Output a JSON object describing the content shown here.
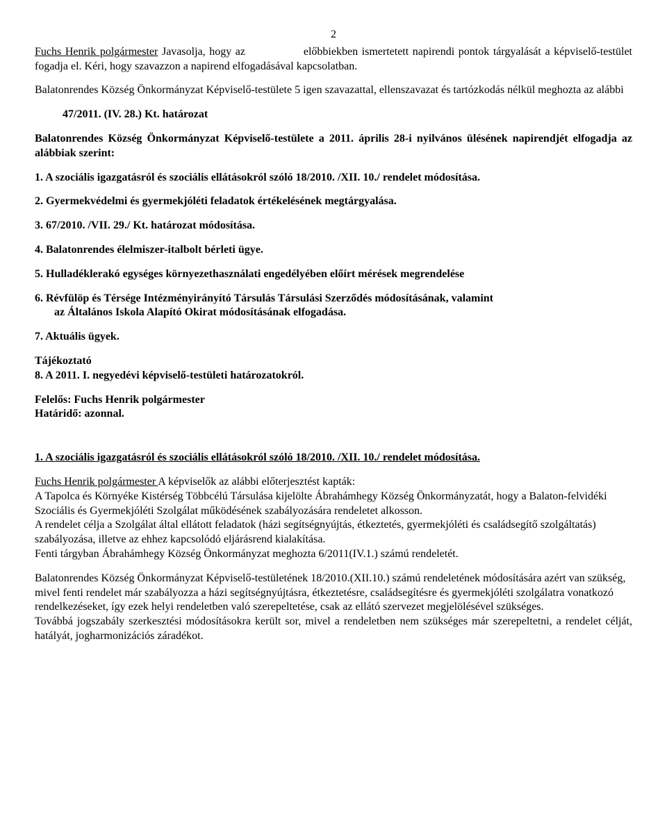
{
  "page_number": "2",
  "intro": {
    "p1_name": "Fuchs Henrik polgármester",
    "p1_rest": " Javasolja, hogy az               előbbiekben ismertetett napirendi pontok tárgyalását a képviselő-testület fogadja el. Kéri, hogy szavazzon  a napirend elfogadásával kapcsolatban.",
    "p2": "Balatonrendes  Község Önkormányzat  Képviselő-testülete  5 igen szavazattal, ellenszavazat és tartózkodás nélkül meghozta az alábbi",
    "res_no": "47/2011. (IV. 28.) Kt.  határozat",
    "p3": "Balatonrendes  Község Önkormányzat Képviselő-testülete a 2011. április 28-i  nyilvános ülésének napirendjét elfogadja az alábbiak szerint:"
  },
  "items": {
    "i1": "1.    A szociális igazgatásról és szociális ellátásokról szóló 18/2010. /XII. 10./ rendelet módosítása.",
    "i2": "2.   Gyermekvédelmi és gyermekjóléti feladatok értékelésének megtárgyalása.",
    "i3": "3.    67/2010. /VII. 29./ Kt. határozat módosítása.",
    "i4": "4.    Balatonrendes élelmiszer-italbolt bérleti ügye.",
    "i5": "5.   Hulladéklerakó egységes környezethasználati engedélyében előírt mérések megrendelése",
    "i6a": "6.   Révfülöp és Térsége Intézményirányító Társulás Társulási Szerződés módosításának, valamint",
    "i6b": "az Általános Iskola  Alapító Okirat módosításának elfogadása.",
    "i7": "7.   Aktuális ügyek.",
    "taj": "Tájékoztató",
    "i8": "8.   A 2011. I. negyedévi képviselő-testületi határozatokról.",
    "fel": "Felelős: Fuchs Henrik polgármester",
    "hat": "Határidő: azonnal."
  },
  "section1": {
    "heading": "1.    A szociális igazgatásról és szociális ellátásokról szóló 18/2010. /XII. 10./ rendelet módosítása.",
    "p1_name": "Fuchs Henrik polgármester ",
    "p1_rest": "  A képviselők az alábbi előterjesztést kapták:",
    "p2": "A Tapolca és Környéke Kistérség Többcélú Társulása kijelölte Ábrahámhegy Község Önkormányzatát, hogy a Balaton-felvidéki Szociális és Gyermekjóléti Szolgálat működésének szabályozására rendeletet alkosson.",
    "p3": "A rendelet célja a Szolgálat által ellátott feladatok (házi segítségnyújtás, étkeztetés, gyermekjóléti és családsegítő szolgáltatás) szabályozása, illetve az ehhez kapcsolódó eljárásrend kialakítása.",
    "p4": "Fenti tárgyban Ábrahámhegy Község Önkormányzat meghozta 6/2011(IV.1.) számú rendeletét.",
    "p5": "Balatonrendes Község Önkormányzat Képviselő-testületének 18/2010.(XII.10.) számú rendeletének módosítására azért van szükség, mivel fenti rendelet már szabályozza a házi segítségnyújtásra, étkeztetésre, családsegítésre és gyermekjóléti szolgálatra vonatkozó rendelkezéseket, így ezek helyi rendeletben való szerepeltetése, csak  az ellátó szervezet megjelölésével szükséges.",
    "p6": "Továbbá jogszabály szerkesztési módosításokra került sor, mivel a rendeletben nem szükséges már szerepeltetni, a rendelet célját, hatályát, jogharmonizációs záradékot."
  }
}
